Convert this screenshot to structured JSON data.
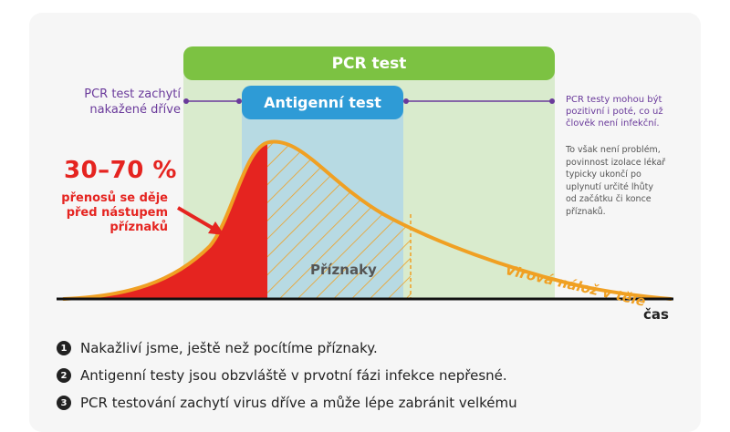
{
  "bars": {
    "pcr": "PCR test",
    "antigen": "Antigenní test"
  },
  "notes": {
    "left_line1": "PCR test zachytí",
    "left_line2": "nakažené dříve",
    "right_line1": "PCR testy mohou být",
    "right_line2": "pozitivní i poté, co už",
    "right_line3": "člověk není infekční.",
    "right_sub1": "To však není problém,",
    "right_sub2": "povinnost izolace lékař",
    "right_sub3": "typicky ukončí po",
    "right_sub4": "uplynutí určité lhůty",
    "right_sub5": "od začátku či konce",
    "right_sub6": "příznaků."
  },
  "transmission": {
    "percent": "30–70 %",
    "line1": "přenosů se děje",
    "line2": "před nástupem",
    "line3": "příznaků"
  },
  "labels": {
    "symptoms": "Příznaky",
    "viral_load": "Virová nálož v těle",
    "time": "čas"
  },
  "points": [
    {
      "num": "1",
      "text": "Nakažliví jsme, ještě než pocítíme příznaky."
    },
    {
      "num": "2",
      "text": "Antigenní testy jsou obzvláště v prvotní fázi infekce nepřesné."
    },
    {
      "num": "3",
      "text": "PCR testování zachytí virus dříve a může lépe zabránit velkému"
    }
  ],
  "colors": {
    "pcr_green": "#7cc242",
    "antigen_blue": "#2e9bd6",
    "purple": "#6a3a9b",
    "red": "#e52420",
    "curve": "#f0a023"
  }
}
